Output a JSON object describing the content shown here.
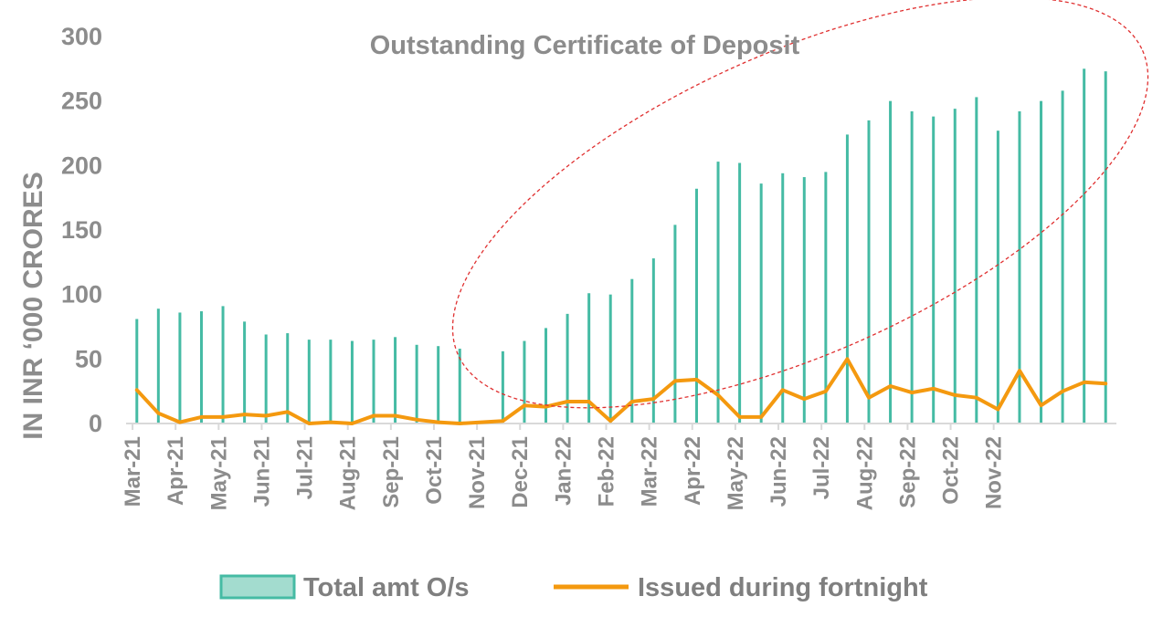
{
  "chart_data": {
    "type": "bar",
    "title": "Outstanding Certificate of Deposit",
    "ylabel": "IN INR  ‘000 CRORES",
    "xlabel": "",
    "ylim": [
      0,
      300
    ],
    "yticks": [
      0,
      50,
      100,
      150,
      200,
      250,
      300
    ],
    "month_labels": [
      "Mar-21",
      "Apr-21",
      "May-21",
      "Jun-21",
      "Jul-21",
      "Aug-21",
      "Sep-21",
      "Oct-21",
      "Nov-21",
      "Dec-21",
      "Jan-22",
      "Feb-22",
      "Mar-22",
      "Apr-22",
      "May-22",
      "Jun-22",
      "Jul-22",
      "Aug-22",
      "Sep-22",
      "Oct-22",
      "Nov-22"
    ],
    "legend_position": "bottom",
    "grid": false,
    "colors": {
      "bars": "#45bba4",
      "bars_legend_fill": "#a3dccf",
      "line": "#f4990f",
      "ellipse": "#e03030"
    },
    "annotation": "dashed red ellipse around Oct-21 to Nov-22 period",
    "series": [
      {
        "name": "Total amt O/s",
        "type": "bar",
        "values": [
          81,
          89,
          86,
          87,
          91,
          79,
          69,
          70,
          65,
          65,
          64,
          65,
          67,
          61,
          60,
          58,
          null,
          56,
          64,
          74,
          85,
          101,
          100,
          112,
          128,
          154,
          182,
          203,
          202,
          186,
          194,
          191,
          195,
          224,
          235,
          250,
          242,
          238,
          244,
          253,
          227,
          242,
          250,
          258,
          275,
          273
        ]
      },
      {
        "name": "Issued during fortnight",
        "type": "line",
        "values": [
          26,
          8,
          1,
          5,
          5,
          7,
          6,
          9,
          0,
          1,
          0,
          6,
          6,
          3,
          1,
          0,
          1,
          2,
          14,
          13,
          17,
          17,
          2,
          17,
          19,
          33,
          34,
          22,
          5,
          5,
          26,
          19,
          25,
          50,
          20,
          29,
          24,
          27,
          22,
          20,
          11,
          41,
          14,
          25,
          32,
          31
        ]
      }
    ]
  }
}
